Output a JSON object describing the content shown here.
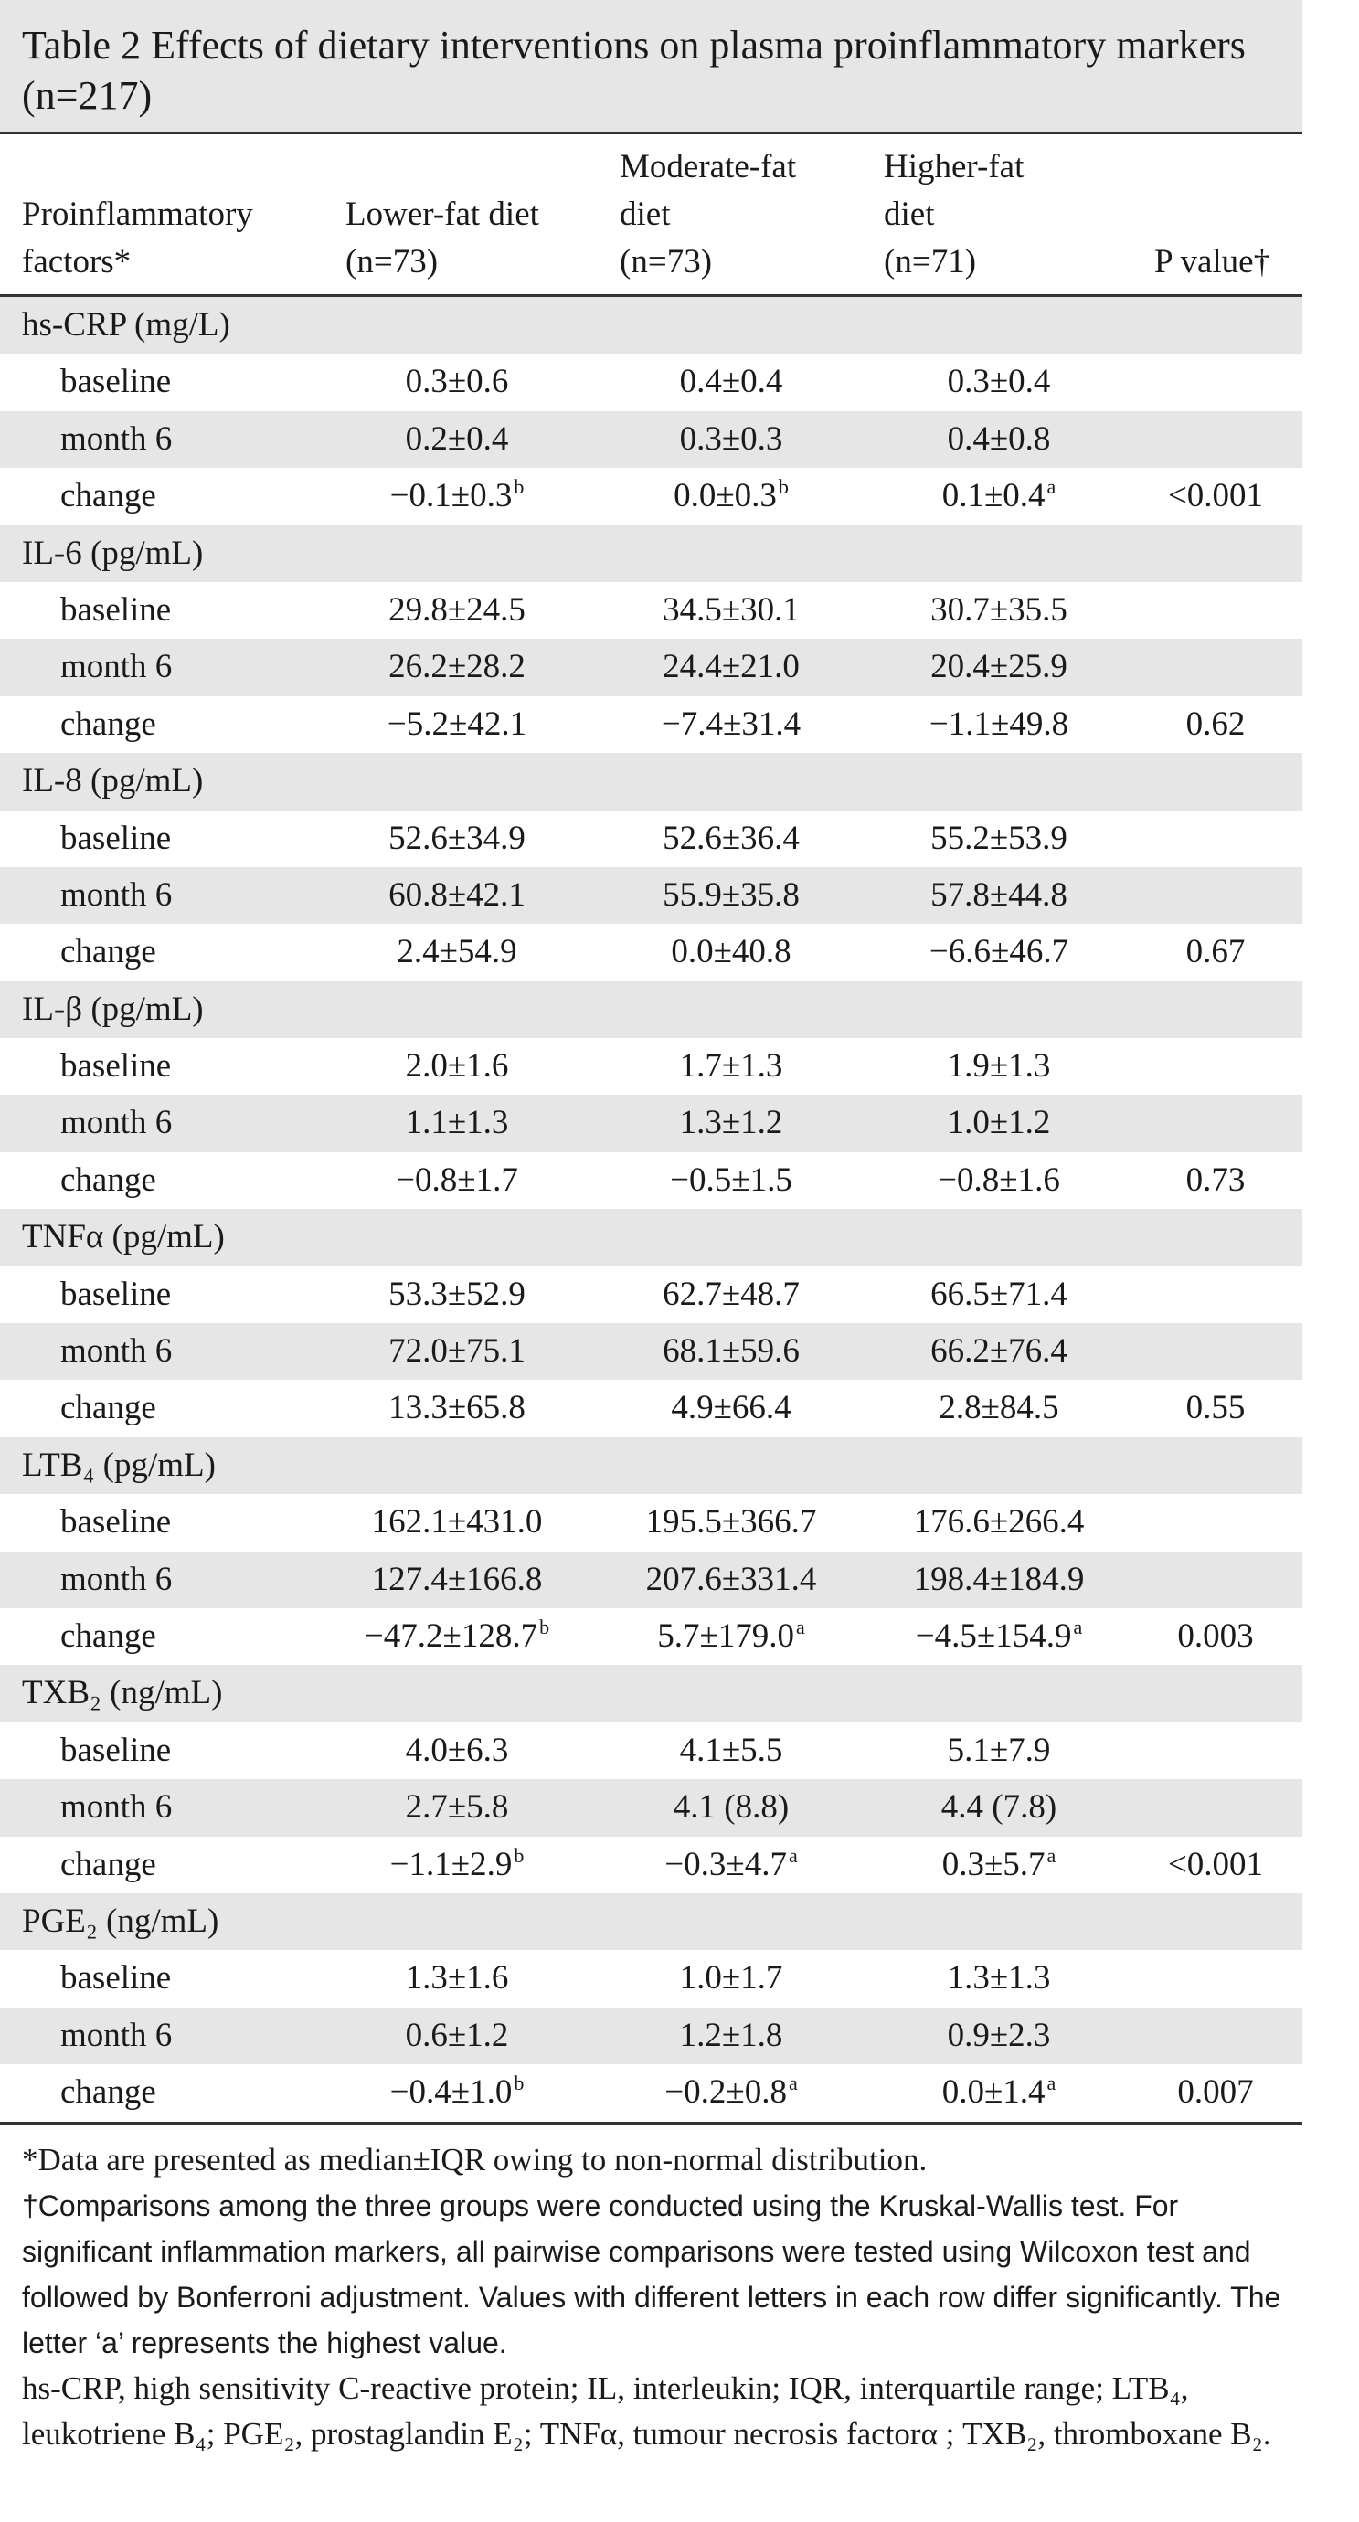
{
  "title": "Table 2 Effects of dietary interventions on plasma proinflammatory markers (n=217)",
  "header": {
    "col1": [
      "Proinflammatory",
      "factors*"
    ],
    "col2": [
      "Lower-fat diet",
      "(n=73)"
    ],
    "col3": [
      "Moderate-fat",
      "diet",
      "(n=73)"
    ],
    "col4": [
      "Higher-fat",
      "diet",
      "(n=71)"
    ],
    "col5": "P value†"
  },
  "groups": [
    {
      "name": "hs-CRP (mg/L)",
      "rows": [
        {
          "label": "baseline",
          "v1": "0.3±0.6",
          "v2": "0.4±0.4",
          "v3": "0.3±0.4",
          "p": ""
        },
        {
          "label": "month 6",
          "v1": "0.2±0.4",
          "v2": "0.3±0.3",
          "v3": "0.4±0.8",
          "p": ""
        },
        {
          "label": "change",
          "v1": "−0.1±0.3",
          "s1": "b",
          "v2": "0.0±0.3",
          "s2": "b",
          "v3": "0.1±0.4",
          "s3": "a",
          "p": "<0.001"
        }
      ]
    },
    {
      "name": "IL-6 (pg/mL)",
      "rows": [
        {
          "label": "baseline",
          "v1": "29.8±24.5",
          "v2": "34.5±30.1",
          "v3": "30.7±35.5",
          "p": ""
        },
        {
          "label": "month 6",
          "v1": "26.2±28.2",
          "v2": "24.4±21.0",
          "v3": "20.4±25.9",
          "p": ""
        },
        {
          "label": "change",
          "v1": "−5.2±42.1",
          "v2": "−7.4±31.4",
          "v3": "−1.1±49.8",
          "p": "0.62"
        }
      ]
    },
    {
      "name": "IL-8 (pg/mL)",
      "rows": [
        {
          "label": "baseline",
          "v1": "52.6±34.9",
          "v2": "52.6±36.4",
          "v3": "55.2±53.9",
          "p": ""
        },
        {
          "label": "month 6",
          "v1": "60.8±42.1",
          "v2": "55.9±35.8",
          "v3": "57.8±44.8",
          "p": ""
        },
        {
          "label": "change",
          "v1": "2.4±54.9",
          "v2": "0.0±40.8",
          "v3": "−6.6±46.7",
          "p": "0.67"
        }
      ]
    },
    {
      "name": "IL-β (pg/mL)",
      "rows": [
        {
          "label": "baseline",
          "v1": "2.0±1.6",
          "v2": "1.7±1.3",
          "v3": "1.9±1.3",
          "p": ""
        },
        {
          "label": "month 6",
          "v1": "1.1±1.3",
          "v2": "1.3±1.2",
          "v3": "1.0±1.2",
          "p": ""
        },
        {
          "label": "change",
          "v1": "−0.8±1.7",
          "v2": "−0.5±1.5",
          "v3": "−0.8±1.6",
          "p": "0.73"
        }
      ]
    },
    {
      "name": "TNFα (pg/mL)",
      "rows": [
        {
          "label": "baseline",
          "v1": "53.3±52.9",
          "v2": "62.7±48.7",
          "v3": "66.5±71.4",
          "p": ""
        },
        {
          "label": "month 6",
          "v1": "72.0±75.1",
          "v2": "68.1±59.6",
          "v3": "66.2±76.4",
          "p": ""
        },
        {
          "label": "change",
          "v1": "13.3±65.8",
          "v2": "4.9±66.4",
          "v3": "2.8±84.5",
          "p": "0.55"
        }
      ]
    },
    {
      "name": "LTB₄ (pg/mL)",
      "rows": [
        {
          "label": "baseline",
          "v1": "162.1±431.0",
          "v2": "195.5±366.7",
          "v3": "176.6±266.4",
          "p": ""
        },
        {
          "label": "month 6",
          "v1": "127.4±166.8",
          "v2": "207.6±331.4",
          "v3": "198.4±184.9",
          "p": ""
        },
        {
          "label": "change",
          "v1": "−47.2±128.7",
          "s1": "b",
          "v2": "5.7±179.0",
          "s2": "a",
          "v3": "−4.5±154.9",
          "s3": "a",
          "p": "0.003"
        }
      ]
    },
    {
      "name": "TXB₂ (ng/mL)",
      "rows": [
        {
          "label": "baseline",
          "v1": "4.0±6.3",
          "v2": "4.1±5.5",
          "v3": "5.1±7.9",
          "p": ""
        },
        {
          "label": "month 6",
          "v1": "2.7±5.8",
          "v2": "4.1 (8.8)",
          "v3": "4.4 (7.8)",
          "p": ""
        },
        {
          "label": "change",
          "v1": "−1.1±2.9",
          "s1": "b",
          "v2": "−0.3±4.7",
          "s2": "a",
          "v3": "0.3±5.7",
          "s3": "a",
          "p": "<0.001"
        }
      ]
    },
    {
      "name": "PGE₂ (ng/mL)",
      "rows": [
        {
          "label": "baseline",
          "v1": "1.3±1.6",
          "v2": "1.0±1.7",
          "v3": "1.3±1.3",
          "p": ""
        },
        {
          "label": "month 6",
          "v1": "0.6±1.2",
          "v2": "1.2±1.8",
          "v3": "0.9±2.3",
          "p": ""
        },
        {
          "label": "change",
          "v1": "−0.4±1.0",
          "s1": "b",
          "v2": "−0.2±0.8",
          "s2": "a",
          "v3": "0.0±1.4",
          "s3": "a",
          "p": "0.007"
        }
      ]
    }
  ],
  "footnotes": {
    "note1": "*Data are presented as median±IQR owing to non-normal distribution.",
    "note2": "†Comparisons among the three groups were conducted using the Kruskal-Wallis test. For significant inflammation markers, all pairwise comparisons were tested using Wilcoxon test and followed by Bonferroni adjustment. Values with different letters in each row differ significantly. The letter ‘a’ represents the highest value.",
    "note3": "hs-CRP, high sensitivity C-reactive protein; IL, interleukin; IQR, interquartile range; LTB₄, leukotriene B₄; PGE₂, prostaglandin E₂; TNFα, tumour necrosis factorα ; TXB₂, thromboxane B₂."
  }
}
